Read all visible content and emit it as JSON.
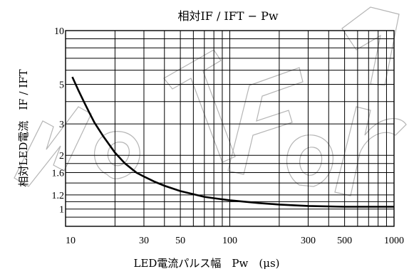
{
  "chart_data": {
    "type": "line",
    "title": "相対IF / IFT − Pw",
    "xlabel": "LED電流パルス幅　Pw　(μs)",
    "ylabel": "相対LED電流　IF / IFT",
    "x_scale": "log",
    "y_scale": "log",
    "xlim": [
      10,
      1000
    ],
    "ylim": [
      0.8,
      10
    ],
    "x_ticks": [
      10,
      30,
      50,
      100,
      300,
      500,
      1000
    ],
    "x_tick_labels": [
      "10",
      "30",
      "50",
      "100",
      "300",
      "500",
      "1000"
    ],
    "y_ticks": [
      1,
      1.2,
      1.6,
      2,
      3,
      5,
      10
    ],
    "y_tick_labels": [
      "1",
      "1.2",
      "1.6",
      "2",
      "3",
      "5",
      "10"
    ],
    "grid": true,
    "series": [
      {
        "x": [
          11,
          12,
          13,
          14,
          15,
          17,
          20,
          23,
          27,
          30,
          35,
          40,
          50,
          60,
          70,
          80,
          100,
          150,
          200,
          300,
          500,
          700,
          1000
        ],
        "y": [
          5.5,
          4.6,
          3.95,
          3.45,
          3.05,
          2.55,
          2.07,
          1.8,
          1.6,
          1.52,
          1.42,
          1.35,
          1.26,
          1.21,
          1.17,
          1.15,
          1.12,
          1.08,
          1.06,
          1.04,
          1.03,
          1.03,
          1.03
        ]
      }
    ]
  },
  "watermark": {
    "text": "Not for..."
  },
  "colors": {
    "line": "#000000",
    "grid": "#000000",
    "watermark": "#b5b5b5"
  }
}
